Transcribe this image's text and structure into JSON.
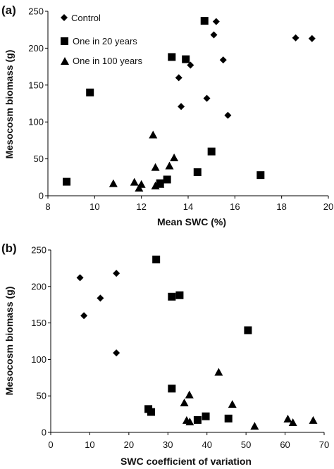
{
  "chart_data": [
    {
      "type": "scatter",
      "panel_label": "(a)",
      "xlabel": "Mean SWC (%)",
      "ylabel": "Mesocosm biomass (g)",
      "xlim": [
        8,
        20
      ],
      "ylim": [
        0,
        250
      ],
      "x_ticks": [
        "8",
        "10",
        "12",
        "14",
        "16",
        "18",
        "20"
      ],
      "y_ticks": [
        "0",
        "50",
        "100",
        "150",
        "200",
        "250"
      ],
      "grid": false,
      "legend": "top-left",
      "series": [
        {
          "name": "Control",
          "marker": "diamond",
          "points": [
            [
              15.2,
              236
            ],
            [
              15.1,
              218
            ],
            [
              14.1,
              177
            ],
            [
              13.6,
              160
            ],
            [
              15.5,
              184
            ],
            [
              14.8,
              132
            ],
            [
              13.7,
              121
            ],
            [
              15.7,
              109
            ],
            [
              18.6,
              214
            ],
            [
              19.3,
              213
            ]
          ]
        },
        {
          "name": "One in 20 years",
          "marker": "square",
          "points": [
            [
              14.7,
              237
            ],
            [
              13.3,
              188
            ],
            [
              13.9,
              185
            ],
            [
              9.8,
              140
            ],
            [
              8.8,
              19
            ],
            [
              15.0,
              60
            ],
            [
              14.4,
              32
            ],
            [
              17.1,
              28
            ],
            [
              13.1,
              22
            ],
            [
              12.8,
              17
            ]
          ]
        },
        {
          "name": "One in 100 years",
          "marker": "triangle",
          "points": [
            [
              12.5,
              83
            ],
            [
              13.4,
              52
            ],
            [
              13.2,
              41
            ],
            [
              12.6,
              39
            ],
            [
              10.8,
              17
            ],
            [
              11.7,
              19
            ],
            [
              12.0,
              16
            ],
            [
              11.9,
              11
            ],
            [
              12.6,
              14
            ],
            [
              12.8,
              16
            ]
          ]
        }
      ]
    },
    {
      "type": "scatter",
      "panel_label": "(b)",
      "xlabel": "SWC coefficient of variation",
      "ylabel": "Mesocosm biomass (g)",
      "xlim": [
        0,
        70
      ],
      "ylim": [
        0,
        250
      ],
      "x_ticks": [
        "0",
        "10",
        "20",
        "30",
        "40",
        "50",
        "60",
        "70"
      ],
      "y_ticks": [
        "0",
        "50",
        "100",
        "150",
        "200",
        "250"
      ],
      "grid": false,
      "legend": "none",
      "series": [
        {
          "name": "Control",
          "marker": "diamond",
          "points": [
            [
              7.5,
              212
            ],
            [
              16.8,
              218
            ],
            [
              12.7,
              184
            ],
            [
              8.5,
              160
            ],
            [
              16.8,
              109
            ]
          ]
        },
        {
          "name": "One in 20 years",
          "marker": "square",
          "points": [
            [
              27.0,
              237
            ],
            [
              33.0,
              188
            ],
            [
              31.0,
              186
            ],
            [
              50.5,
              140
            ],
            [
              31.0,
              60
            ],
            [
              25.0,
              32
            ],
            [
              25.7,
              28
            ],
            [
              39.7,
              22
            ],
            [
              37.6,
              17
            ],
            [
              45.5,
              19
            ]
          ]
        },
        {
          "name": "One in 100 years",
          "marker": "triangle",
          "points": [
            [
              43.0,
              83
            ],
            [
              35.5,
              52
            ],
            [
              34.2,
              41
            ],
            [
              46.5,
              39
            ],
            [
              34.8,
              17
            ],
            [
              35.6,
              15
            ],
            [
              52.2,
              9
            ],
            [
              60.7,
              19
            ],
            [
              62.0,
              14
            ],
            [
              67.2,
              17
            ]
          ]
        }
      ]
    }
  ]
}
